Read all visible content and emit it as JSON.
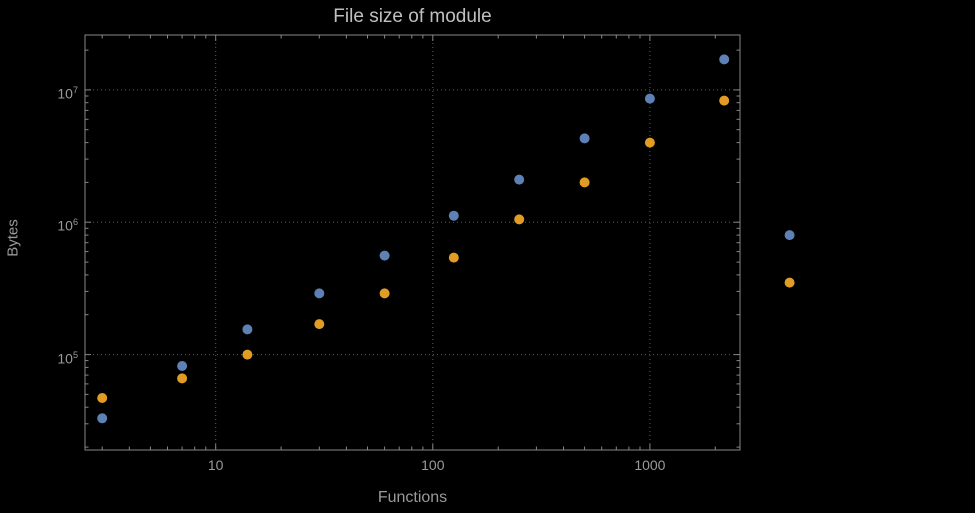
{
  "figure": {
    "background_color": "#000000",
    "frame_color": "#878787",
    "grid_color": "#5c5c5c",
    "text_color": "#9a9a9a",
    "title_color": "#c0c0c0"
  },
  "chart_data": {
    "type": "scatter",
    "title": "File size of module",
    "xlabel": "Functions",
    "ylabel": "Bytes",
    "x_scale": "log",
    "y_scale": "log",
    "grid": "dotted lines at decades, both axes",
    "legend": "none",
    "xlim": [
      2.5,
      2600
    ],
    "ylim": [
      19000,
      26000000
    ],
    "x_tick_values": [
      10,
      100,
      1000
    ],
    "x_tick_labels": [
      "10",
      "100",
      "1000"
    ],
    "y_tick_values": [
      100000,
      1000000,
      10000000
    ],
    "y_tick_exponents": [
      5,
      6,
      7
    ],
    "x": [
      3,
      7,
      14,
      30,
      60,
      125,
      250,
      500,
      1000,
      2200,
      4400
    ],
    "series": [
      {
        "name": "blue",
        "color": "#5e81b5",
        "values": [
          33000,
          82000,
          155000,
          290000,
          560000,
          1120000,
          2100000,
          4300000,
          8600000,
          17000000,
          800000
        ]
      },
      {
        "name": "orange",
        "color": "#e19c24",
        "values": [
          47000,
          66000,
          100000,
          170000,
          290000,
          540000,
          1050000,
          2000000,
          4000000,
          8300000,
          350000
        ]
      }
    ]
  }
}
